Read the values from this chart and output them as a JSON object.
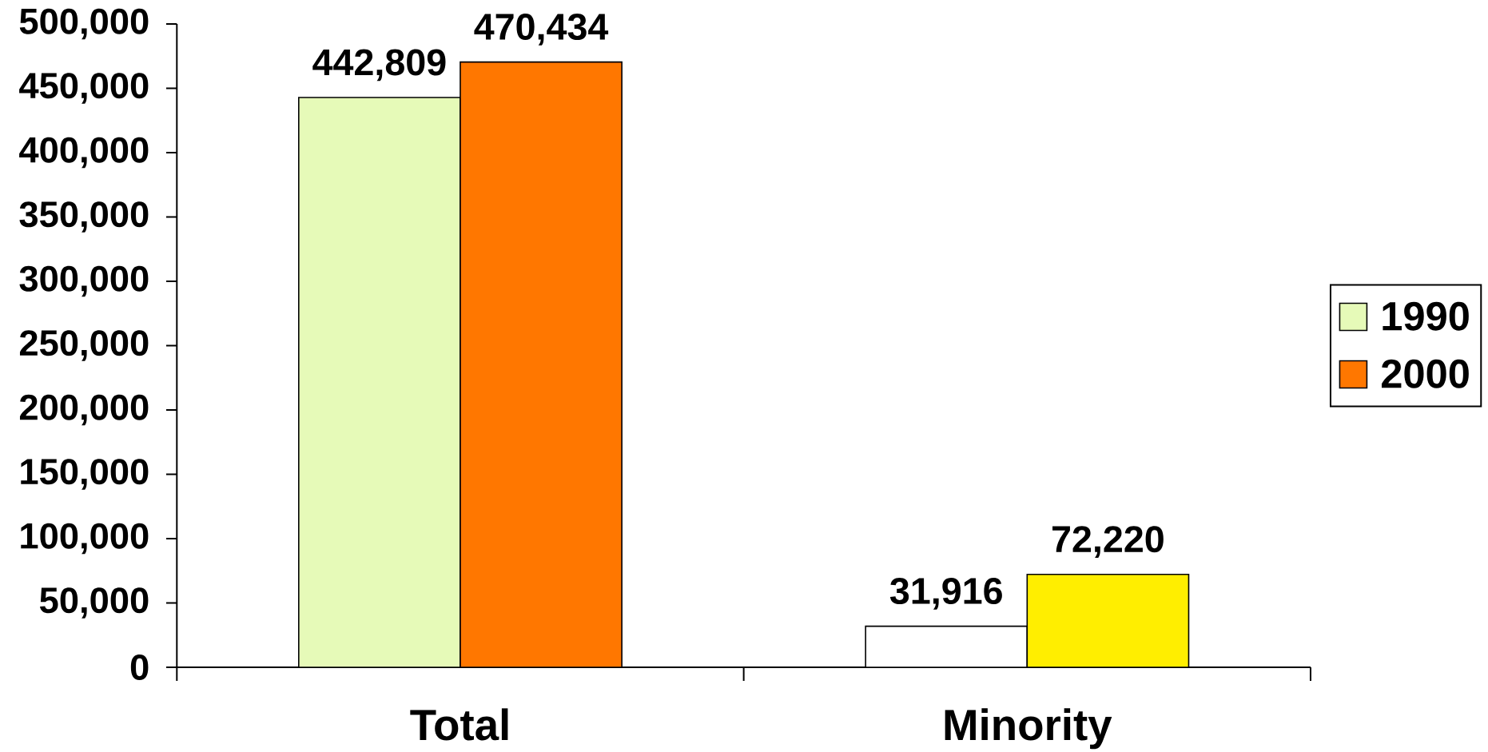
{
  "chart_data": {
    "type": "bar",
    "categories": [
      "Total",
      "Minority"
    ],
    "series": [
      {
        "name": "1990",
        "color": "#e6fab8",
        "colors": [
          "#e6fab8",
          "#ffffff"
        ],
        "values": [
          442809,
          31916
        ],
        "value_labels": [
          "442,809",
          "31,916"
        ]
      },
      {
        "name": "2000",
        "color": "#ff7700",
        "colors": [
          "#ff7700",
          "#ffee00"
        ],
        "values": [
          470434,
          72220
        ],
        "value_labels": [
          "470,434",
          "72,220"
        ]
      }
    ],
    "ylim": [
      0,
      500000
    ],
    "yticks": [
      0,
      {
        "value": 50000,
        "label": "50,000"
      },
      {
        "value": 100000,
        "label": "100,000"
      },
      {
        "value": 150000,
        "label": "150,000"
      },
      {
        "value": 200000,
        "label": "200,000"
      },
      {
        "value": 250000,
        "label": "250,000"
      },
      {
        "value": 300000,
        "label": "300,000"
      },
      {
        "value": 350000,
        "label": "350,000"
      },
      {
        "value": 400000,
        "label": "400,000"
      },
      {
        "value": 450000,
        "label": "450,000"
      },
      {
        "value": 500000,
        "label": "500,000"
      }
    ],
    "legend": "right"
  }
}
